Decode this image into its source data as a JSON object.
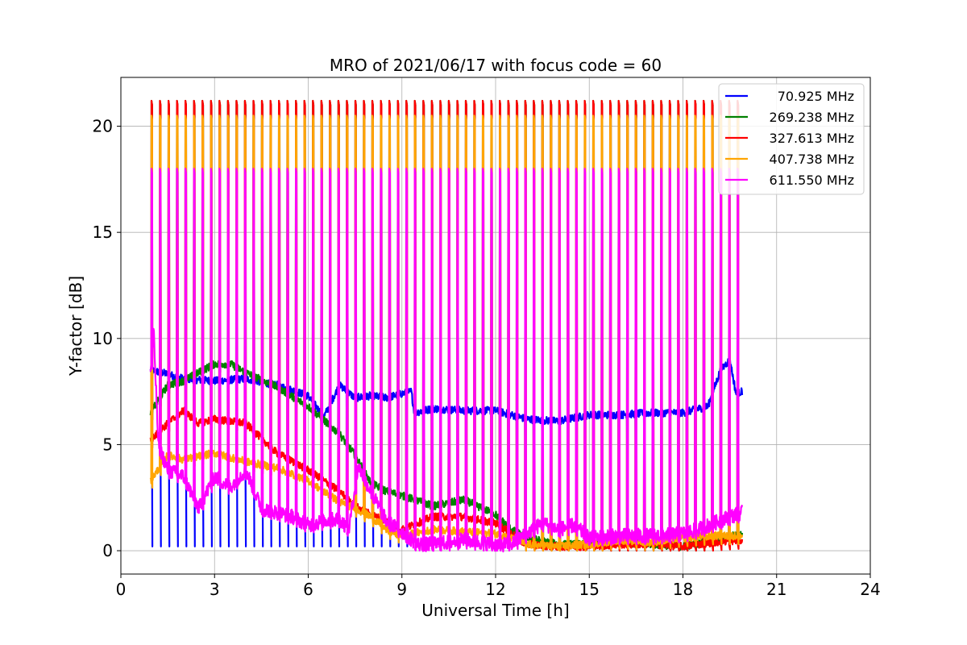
{
  "chart_data": {
    "type": "line",
    "title": "MRO of 2021/06/17 with focus code = 60",
    "xlabel": "Universal Time [h]",
    "ylabel": "Y-factor [dB]",
    "xlim": [
      0,
      24
    ],
    "ylim": [
      -1.1,
      22.3
    ],
    "xticks": [
      0,
      3,
      6,
      9,
      12,
      15,
      18,
      21,
      24
    ],
    "yticks": [
      0,
      5,
      10,
      15,
      20
    ],
    "grid": true,
    "legend_position": "top-right",
    "peaks": {
      "start": 0.98,
      "end": 19.75,
      "count": 70,
      "note_levels": {
        "70.925 MHz": 4.0,
        "269.238 MHz": 21.2,
        "327.613 MHz": 21.2,
        "407.738 MHz": 20.5,
        "611.550 MHz": 18.0
      }
    },
    "series": [
      {
        "name": "70.925 MHz",
        "color": "#0000ff",
        "x": [
          0.95,
          1.3,
          2.0,
          3.0,
          4.0,
          5.0,
          6.0,
          6.5,
          7.0,
          7.5,
          8.0,
          8.5,
          9.0,
          9.3,
          9.4,
          10.0,
          11.0,
          12.0,
          13.0,
          14.0,
          15.0,
          16.0,
          17.0,
          18.0,
          18.8,
          19.2,
          19.5,
          19.7,
          19.9
        ],
        "y": [
          8.5,
          8.4,
          8.1,
          8.0,
          8.1,
          7.8,
          7.3,
          6.3,
          7.8,
          7.2,
          7.3,
          7.2,
          7.4,
          7.5,
          6.5,
          6.7,
          6.6,
          6.6,
          6.2,
          6.1,
          6.4,
          6.4,
          6.5,
          6.5,
          6.8,
          8.5,
          9.0,
          7.4,
          7.5
        ]
      },
      {
        "name": "269.238 MHz",
        "color": "#008000",
        "x": [
          0.95,
          1.5,
          2.0,
          3.0,
          3.5,
          4.0,
          5.0,
          6.0,
          7.0,
          7.5,
          8.0,
          8.5,
          9.0,
          10.0,
          11.0,
          12.0,
          12.5,
          13.0,
          14.0,
          15.0,
          16.0,
          17.0,
          18.0,
          19.0,
          19.9
        ],
        "y": [
          6.5,
          7.8,
          8.0,
          8.8,
          8.8,
          8.4,
          7.7,
          6.8,
          5.5,
          4.5,
          3.2,
          2.8,
          2.6,
          2.1,
          2.4,
          1.7,
          1.0,
          0.6,
          0.3,
          0.3,
          0.4,
          0.3,
          0.2,
          0.5,
          0.8
        ]
      },
      {
        "name": "327.613 MHz",
        "color": "#ff0000",
        "x": [
          0.95,
          1.5,
          2.0,
          2.5,
          3.0,
          4.0,
          5.0,
          6.0,
          7.0,
          7.5,
          8.0,
          8.5,
          9.0,
          10.0,
          11.0,
          12.0,
          12.5,
          13.0,
          14.0,
          15.0,
          16.0,
          17.0,
          18.0,
          19.0,
          19.9
        ],
        "y": [
          5.2,
          6.0,
          6.6,
          6.0,
          6.2,
          6.0,
          4.6,
          3.8,
          2.8,
          2.1,
          1.7,
          1.4,
          1.0,
          1.6,
          1.6,
          1.3,
          0.8,
          0.3,
          0.2,
          0.2,
          0.3,
          0.3,
          0.2,
          0.4,
          0.5
        ]
      },
      {
        "name": "407.738 MHz",
        "color": "#ffa500",
        "x": [
          0.95,
          1.5,
          2.0,
          3.0,
          4.0,
          5.0,
          6.0,
          7.0,
          7.5,
          8.0,
          8.5,
          9.0,
          10.0,
          11.0,
          12.0,
          12.5,
          13.0,
          14.0,
          15.0,
          16.0,
          17.0,
          18.0,
          19.0,
          19.9
        ],
        "y": [
          3.3,
          4.5,
          4.3,
          4.6,
          4.2,
          3.9,
          3.3,
          2.3,
          2.0,
          1.6,
          1.0,
          0.7,
          1.0,
          0.9,
          0.8,
          0.6,
          0.3,
          0.2,
          0.3,
          0.5,
          0.4,
          0.6,
          0.7,
          0.7
        ]
      },
      {
        "name": "611.550 MHz",
        "color": "#ff00ff",
        "x": [
          0.95,
          1.05,
          1.2,
          1.5,
          2.0,
          2.5,
          3.0,
          3.5,
          4.0,
          4.5,
          5.0,
          5.5,
          6.0,
          6.5,
          7.0,
          7.3,
          7.6,
          8.0,
          8.5,
          9.0,
          9.5,
          10.0,
          11.0,
          12.0,
          12.5,
          13.0,
          13.5,
          14.0,
          14.5,
          15.0,
          16.0,
          17.0,
          18.0,
          18.5,
          19.0,
          19.5,
          19.9
        ],
        "y": [
          8.4,
          10.3,
          5.0,
          3.8,
          3.5,
          2.0,
          3.5,
          3.0,
          3.8,
          2.0,
          1.8,
          1.6,
          1.2,
          1.4,
          1.5,
          1.0,
          4.0,
          2.8,
          1.4,
          0.9,
          0.3,
          0.3,
          0.5,
          0.3,
          0.3,
          0.8,
          1.3,
          1.0,
          1.2,
          0.6,
          0.7,
          0.7,
          0.8,
          1.0,
          1.3,
          1.6,
          1.8
        ]
      }
    ]
  }
}
